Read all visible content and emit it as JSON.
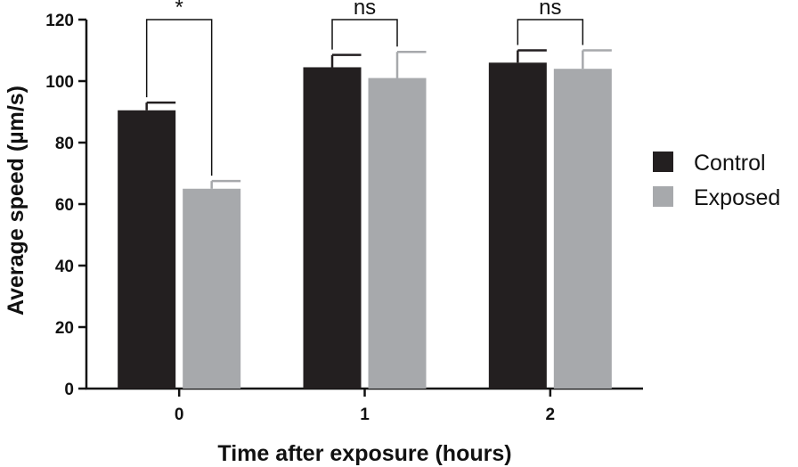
{
  "chart_data": {
    "type": "bar",
    "xlabel": "Time after exposure (hours)",
    "ylabel": "Average speed (µm/s)",
    "categories": [
      "0",
      "1",
      "2"
    ],
    "ylim": [
      0,
      120
    ],
    "yticks": [
      0,
      20,
      40,
      60,
      80,
      100,
      120
    ],
    "grid": false,
    "legend_position": "right",
    "series": [
      {
        "name": "Control",
        "color": "#231f20",
        "values": [
          90.5,
          104.5,
          106
        ],
        "errors": [
          2.5,
          4,
          4
        ]
      },
      {
        "name": "Exposed",
        "color": "#a7a9ac",
        "values": [
          65,
          101,
          104
        ],
        "errors": [
          2.5,
          8.5,
          6
        ]
      }
    ],
    "significance": [
      "*",
      "ns",
      "ns"
    ]
  }
}
